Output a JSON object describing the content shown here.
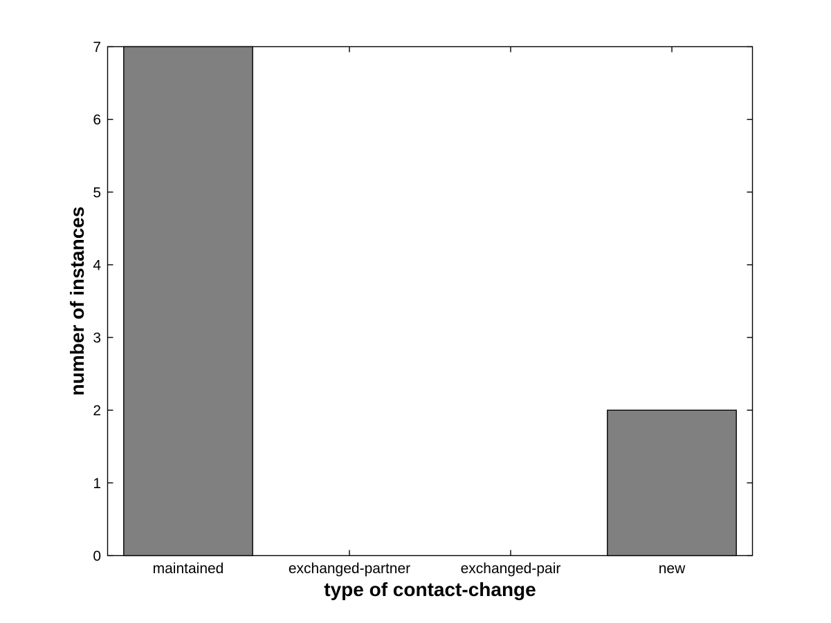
{
  "figure": {
    "background": "#ffffff"
  },
  "chart_data": {
    "type": "bar",
    "title": "",
    "xlabel": "type of contact-change",
    "ylabel": "number of instances",
    "categories": [
      "maintained",
      "exchanged-partner",
      "exchanged-pair",
      "new"
    ],
    "values": [
      7,
      0,
      0,
      2
    ],
    "yticks": [
      0,
      1,
      2,
      3,
      4,
      5,
      6,
      7
    ],
    "ylim": [
      0,
      7
    ],
    "xlim": [
      0.5,
      4.5
    ],
    "bar_width_fraction": 0.8,
    "bar_fill": "#808080",
    "bar_stroke": "#000000",
    "axis_color": "#000000",
    "grid": false,
    "legend": false
  }
}
